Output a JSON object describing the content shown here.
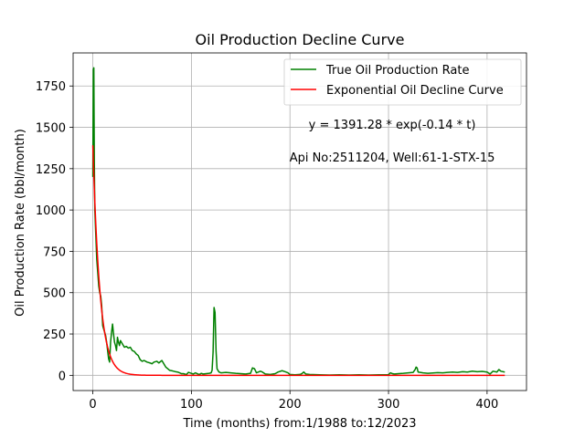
{
  "chart_data": {
    "type": "line",
    "title": "Oil Production Decline Curve",
    "xlabel": "Time (months) from:1/1988 to:12/2023",
    "ylabel": "Oil Production Rate (bbl/month)",
    "xlim": [
      -20,
      440
    ],
    "ylim": [
      -92,
      1950
    ],
    "xticks": [
      0,
      100,
      200,
      300,
      400
    ],
    "yticks": [
      0,
      250,
      500,
      750,
      1000,
      1250,
      1500,
      1750
    ],
    "grid": true,
    "legend_position": "top-right",
    "annotations": [
      {
        "text": "y = 1391.28 * exp(-0.14 * t)",
        "x": 300,
        "y": 1520
      },
      {
        "text": "Api No:2511204, Well:61-1-STX-15",
        "x": 300,
        "y": 1320
      }
    ],
    "series": [
      {
        "name": "True Oil Production Rate",
        "color": "#008000",
        "points": [
          [
            0,
            1200
          ],
          [
            0.5,
            1850
          ],
          [
            1,
            1860
          ],
          [
            1.5,
            1300
          ],
          [
            2,
            1000
          ],
          [
            3,
            850
          ],
          [
            4,
            700
          ],
          [
            5,
            620
          ],
          [
            6,
            540
          ],
          [
            7,
            500
          ],
          [
            8,
            480
          ],
          [
            9,
            420
          ],
          [
            10,
            300
          ],
          [
            11,
            280
          ],
          [
            12,
            260
          ],
          [
            13,
            240
          ],
          [
            14,
            200
          ],
          [
            15,
            150
          ],
          [
            16,
            100
          ],
          [
            17,
            80
          ],
          [
            18,
            200
          ],
          [
            19,
            260
          ],
          [
            20,
            310
          ],
          [
            21,
            250
          ],
          [
            22,
            200
          ],
          [
            23,
            180
          ],
          [
            24,
            150
          ],
          [
            25,
            230
          ],
          [
            26,
            200
          ],
          [
            27,
            180
          ],
          [
            28,
            210
          ],
          [
            30,
            190
          ],
          [
            32,
            170
          ],
          [
            34,
            175
          ],
          [
            36,
            165
          ],
          [
            38,
            170
          ],
          [
            40,
            150
          ],
          [
            42,
            145
          ],
          [
            44,
            130
          ],
          [
            46,
            120
          ],
          [
            48,
            95
          ],
          [
            50,
            85
          ],
          [
            52,
            90
          ],
          [
            55,
            80
          ],
          [
            58,
            75
          ],
          [
            60,
            70
          ],
          [
            62,
            80
          ],
          [
            65,
            85
          ],
          [
            67,
            75
          ],
          [
            70,
            90
          ],
          [
            72,
            70
          ],
          [
            74,
            50
          ],
          [
            76,
            40
          ],
          [
            78,
            30
          ],
          [
            80,
            28
          ],
          [
            82,
            25
          ],
          [
            84,
            22
          ],
          [
            86,
            20
          ],
          [
            88,
            15
          ],
          [
            90,
            10
          ],
          [
            92,
            10
          ],
          [
            95,
            5
          ],
          [
            97,
            18
          ],
          [
            100,
            12
          ],
          [
            102,
            8
          ],
          [
            104,
            15
          ],
          [
            106,
            10
          ],
          [
            108,
            5
          ],
          [
            110,
            12
          ],
          [
            112,
            8
          ],
          [
            115,
            10
          ],
          [
            118,
            12
          ],
          [
            120,
            15
          ],
          [
            121,
            30
          ],
          [
            122,
            140
          ],
          [
            123,
            410
          ],
          [
            124,
            380
          ],
          [
            125,
            150
          ],
          [
            126,
            40
          ],
          [
            128,
            20
          ],
          [
            130,
            15
          ],
          [
            135,
            18
          ],
          [
            140,
            15
          ],
          [
            145,
            12
          ],
          [
            150,
            10
          ],
          [
            155,
            8
          ],
          [
            160,
            12
          ],
          [
            162,
            45
          ],
          [
            164,
            40
          ],
          [
            166,
            15
          ],
          [
            170,
            25
          ],
          [
            172,
            20
          ],
          [
            175,
            8
          ],
          [
            180,
            5
          ],
          [
            185,
            10
          ],
          [
            188,
            20
          ],
          [
            192,
            28
          ],
          [
            195,
            22
          ],
          [
            198,
            15
          ],
          [
            200,
            5
          ],
          [
            205,
            3
          ],
          [
            210,
            5
          ],
          [
            212,
            10
          ],
          [
            214,
            20
          ],
          [
            216,
            8
          ],
          [
            220,
            5
          ],
          [
            230,
            3
          ],
          [
            240,
            2
          ],
          [
            250,
            3
          ],
          [
            260,
            2
          ],
          [
            270,
            3
          ],
          [
            280,
            2
          ],
          [
            290,
            3
          ],
          [
            300,
            4
          ],
          [
            302,
            15
          ],
          [
            304,
            10
          ],
          [
            306,
            8
          ],
          [
            310,
            10
          ],
          [
            315,
            12
          ],
          [
            320,
            15
          ],
          [
            325,
            18
          ],
          [
            327,
            35
          ],
          [
            328,
            50
          ],
          [
            329,
            45
          ],
          [
            330,
            20
          ],
          [
            335,
            15
          ],
          [
            340,
            12
          ],
          [
            345,
            14
          ],
          [
            350,
            16
          ],
          [
            355,
            15
          ],
          [
            360,
            18
          ],
          [
            365,
            20
          ],
          [
            370,
            18
          ],
          [
            375,
            22
          ],
          [
            380,
            20
          ],
          [
            385,
            25
          ],
          [
            390,
            22
          ],
          [
            395,
            24
          ],
          [
            400,
            20
          ],
          [
            403,
            8
          ],
          [
            406,
            25
          ],
          [
            410,
            20
          ],
          [
            412,
            35
          ],
          [
            414,
            25
          ],
          [
            418,
            20
          ]
        ]
      },
      {
        "name": "Exponential Oil Decline Curve",
        "color": "#ff0000",
        "amplitude": 1391.28,
        "rate": 0.14,
        "x_start": 0,
        "x_end": 418
      }
    ]
  }
}
